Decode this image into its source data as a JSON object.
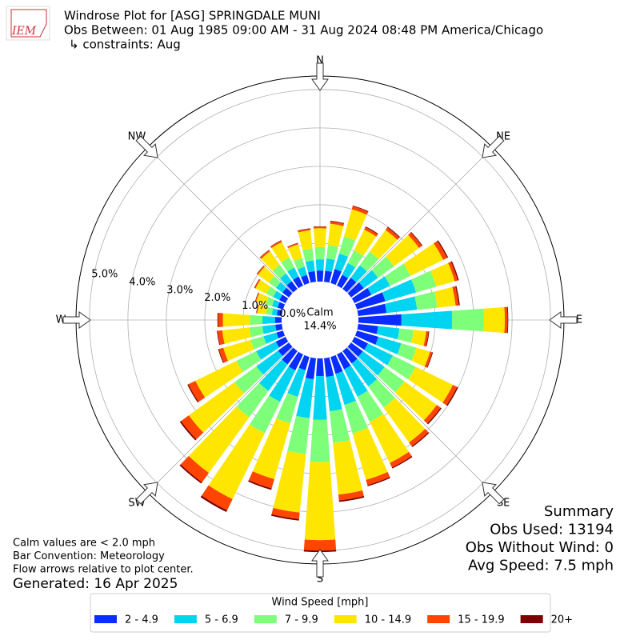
{
  "chart_data": {
    "type": "windrose",
    "title": "Windrose Plot for [ASG] SPRINGDALE MUNI",
    "subtitle": "Obs Between: 01 Aug 1985 09:00 AM - 31 Aug 2024 08:48 PM America/Chicago",
    "constraints": "↳ constraints: Aug",
    "logo": "IEM",
    "x": [
      0,
      10,
      20,
      30,
      40,
      50,
      60,
      70,
      80,
      90,
      100,
      110,
      120,
      130,
      140,
      150,
      160,
      170,
      180,
      190,
      200,
      210,
      220,
      230,
      240,
      250,
      260,
      270,
      280,
      290,
      300,
      310,
      320,
      330,
      340,
      350
    ],
    "directions": [
      "N",
      "NE",
      "E",
      "SE",
      "S",
      "SW",
      "W",
      "NW"
    ],
    "ylim": [
      0,
      5.35
    ],
    "yticks": [
      {
        "value": 0,
        "label": "0.0%"
      },
      {
        "value": 1,
        "label": "1.0%"
      },
      {
        "value": 2,
        "label": "2.0%"
      },
      {
        "value": 3,
        "label": "3.0%"
      },
      {
        "value": 4,
        "label": "4.0%"
      },
      {
        "value": 5,
        "label": "5.0%"
      }
    ],
    "grid": true,
    "calm": {
      "label": "Calm",
      "value": 14.4,
      "value_label": "14.4%"
    },
    "legend_title": "Wind Speed [mph]",
    "legend": "bottom",
    "series": [
      {
        "name": "2 - 4.9",
        "color": "#0a2dff",
        "values": [
          0.29,
          0.29,
          0.38,
          0.31,
          0.36,
          0.41,
          0.49,
          0.77,
          0.74,
          1.12,
          0.52,
          0.58,
          0.39,
          0.38,
          0.4,
          0.43,
          0.46,
          0.49,
          0.46,
          0.55,
          0.36,
          0.46,
          0.43,
          0.35,
          0.28,
          0.18,
          0.17,
          0.17,
          0.13,
          0.15,
          0.18,
          0.21,
          0.25,
          0.26,
          0.22,
          0.28
        ]
      },
      {
        "name": "5 - 6.9",
        "color": "#00d4f0",
        "values": [
          0.29,
          0.32,
          0.42,
          0.34,
          0.4,
          0.46,
          0.54,
          0.83,
          0.8,
          1.32,
          0.56,
          0.62,
          0.72,
          0.7,
          0.74,
          0.79,
          0.84,
          0.9,
          1.14,
          1.02,
          0.72,
          0.91,
          0.85,
          0.7,
          0.57,
          0.35,
          0.34,
          0.33,
          0.13,
          0.15,
          0.18,
          0.21,
          0.25,
          0.26,
          0.22,
          0.28
        ]
      },
      {
        "name": "7 - 9.9",
        "color": "#7dff7a",
        "values": [
          0.32,
          0.35,
          0.46,
          0.37,
          0.44,
          0.51,
          0.59,
          0.55,
          0.53,
          0.83,
          0.37,
          0.41,
          0.66,
          0.64,
          0.68,
          0.73,
          0.77,
          0.83,
          1.1,
          0.94,
          0.72,
          0.91,
          0.85,
          0.7,
          0.57,
          0.35,
          0.34,
          0.33,
          0.15,
          0.17,
          0.2,
          0.23,
          0.28,
          0.29,
          0.24,
          0.31
        ]
      },
      {
        "name": "10 - 14.9",
        "color": "#ffe600",
        "values": [
          0.49,
          0.56,
          0.74,
          0.6,
          0.7,
          0.81,
          0.95,
          0.5,
          0.48,
          0.54,
          0.33,
          0.37,
          1.08,
          1.04,
          1.12,
          1.19,
          1.26,
          1.35,
          2.03,
          1.53,
          1.51,
          1.91,
          1.79,
          1.47,
          1.19,
          0.74,
          0.71,
          0.7,
          0.23,
          0.26,
          0.31,
          0.35,
          0.43,
          0.45,
          0.37,
          0.48
        ]
      },
      {
        "name": "15 - 19.9",
        "color": "#ff4500",
        "values": [
          0.04,
          0.06,
          0.08,
          0.07,
          0.08,
          0.09,
          0.11,
          0.08,
          0.08,
          0.07,
          0.06,
          0.06,
          0.12,
          0.12,
          0.12,
          0.13,
          0.14,
          0.15,
          0.27,
          0.17,
          0.25,
          0.32,
          0.3,
          0.25,
          0.2,
          0.12,
          0.12,
          0.12,
          0.02,
          0.02,
          0.03,
          0.03,
          0.04,
          0.04,
          0.03,
          0.04
        ]
      },
      {
        "name": "20+",
        "color": "#800000",
        "values": [
          0.01,
          0.02,
          0.02,
          0.02,
          0.02,
          0.02,
          0.03,
          0.03,
          0.03,
          0.02,
          0.02,
          0.02,
          0.03,
          0.03,
          0.03,
          0.03,
          0.03,
          0.04,
          0.04,
          0.04,
          0.04,
          0.05,
          0.04,
          0.04,
          0.03,
          0.02,
          0.02,
          0.02,
          0.01,
          0.01,
          0.01,
          0.01,
          0.01,
          0.01,
          0.01,
          0.01
        ]
      }
    ],
    "summary": [
      "Summary",
      "Obs Used: 13194",
      "Obs Without Wind: 0",
      "Avg Speed: 7.5 mph"
    ],
    "notes": [
      "Calm values are < 2.0 mph",
      "Bar Convention: Meteorology",
      "Flow arrows relative to plot center."
    ],
    "generated": "Generated: 16 Apr 2025"
  }
}
